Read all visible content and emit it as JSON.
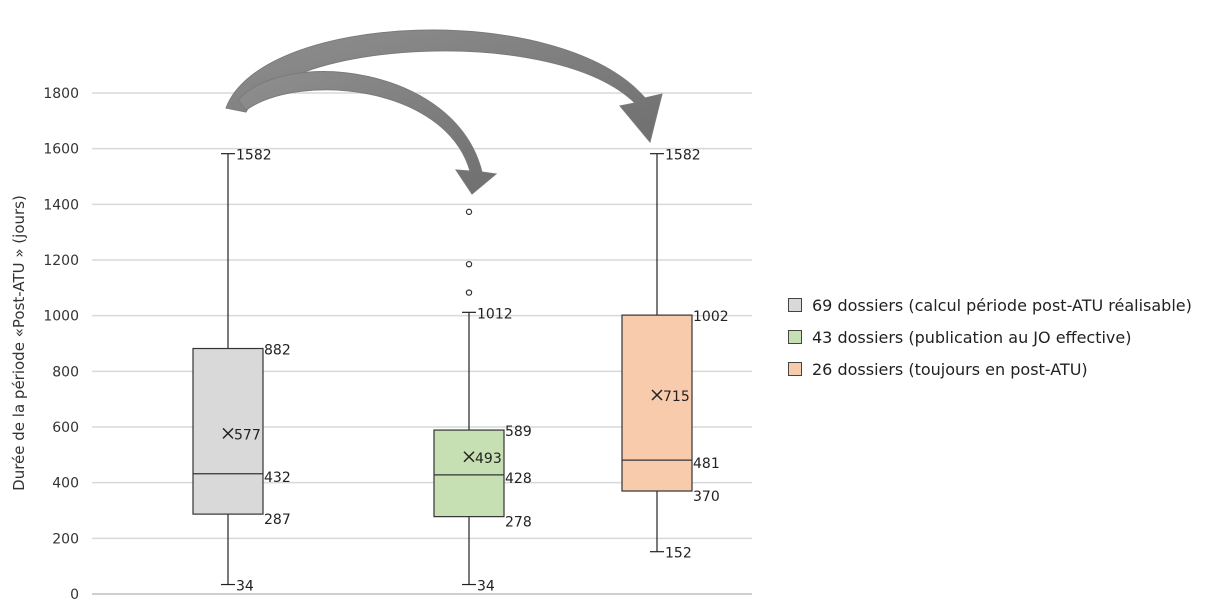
{
  "chart_data": {
    "type": "boxplot",
    "ylabel": "Durée de la période «Post-ATU » (jours)",
    "ylim": [
      0,
      1800
    ],
    "y_ticks": [
      "0",
      "200",
      "400",
      "600",
      "800",
      "1000",
      "1200",
      "1400",
      "1600",
      "1800"
    ],
    "grid": true,
    "legend_position": "right",
    "series": [
      {
        "name": "69 dossiers (calcul période post-ATU réalisable)",
        "color": "#d9d9d9",
        "whisker_low": 34,
        "q1": 287,
        "median": 432,
        "mean": 577,
        "q3": 882,
        "whisker_high": 1582,
        "outliers": [],
        "labels": {
          "whisker_low": "34",
          "q1": "287",
          "median": "432",
          "mean": "577",
          "q3": "882",
          "whisker_high": "1582"
        }
      },
      {
        "name": "43 dossiers (publication au JO effective)",
        "color": "#c6e0b4",
        "whisker_low": 34,
        "q1": 278,
        "median": 428,
        "mean": 493,
        "q3": 589,
        "whisker_high": 1012,
        "outliers": [
          1083,
          1185,
          1373
        ],
        "labels": {
          "whisker_low": "34",
          "q1": "278",
          "median": "428",
          "mean": "493",
          "q3": "589",
          "whisker_high": "1012"
        }
      },
      {
        "name": "26 dossiers (toujours en post-ATU)",
        "color": "#f8cbad",
        "whisker_low": 152,
        "q1": 370,
        "median": 481,
        "mean": 715,
        "q3": 1002,
        "whisker_high": 1582,
        "outliers": [],
        "labels": {
          "whisker_low": "152",
          "q1": "370",
          "median": "481",
          "mean": "715",
          "q3": "1002",
          "whisker_high": "1582"
        }
      }
    ]
  }
}
